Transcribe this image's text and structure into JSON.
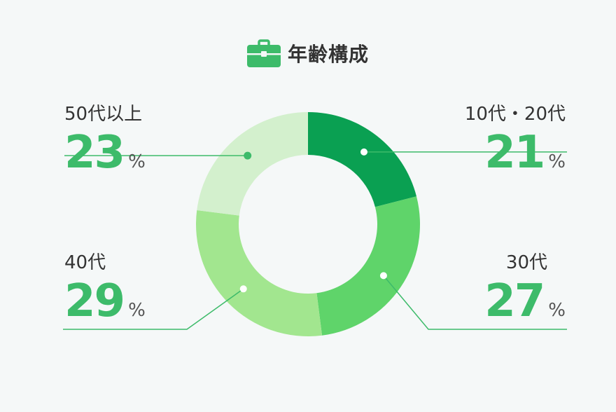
{
  "title": "年齢構成",
  "icon": "briefcase-icon",
  "chart_data": {
    "type": "pie",
    "title": "年齢構成",
    "unit": "%",
    "categories": [
      "10代・20代",
      "30代",
      "40代",
      "50代以上"
    ],
    "values": [
      21,
      27,
      29,
      23
    ],
    "colors": [
      "#0aa052",
      "#5fd46a",
      "#a2e68f",
      "#d3f0cd"
    ],
    "line_color": "#3dbb6a"
  },
  "labels": {
    "top_right": {
      "category": "10代・20代",
      "value": "21",
      "unit": "%"
    },
    "bottom_right": {
      "category": "30代",
      "value": "27",
      "unit": "%"
    },
    "bottom_left": {
      "category": "40代",
      "value": "29",
      "unit": "%"
    },
    "top_left": {
      "category": "50代以上",
      "value": "23",
      "unit": "%"
    }
  }
}
